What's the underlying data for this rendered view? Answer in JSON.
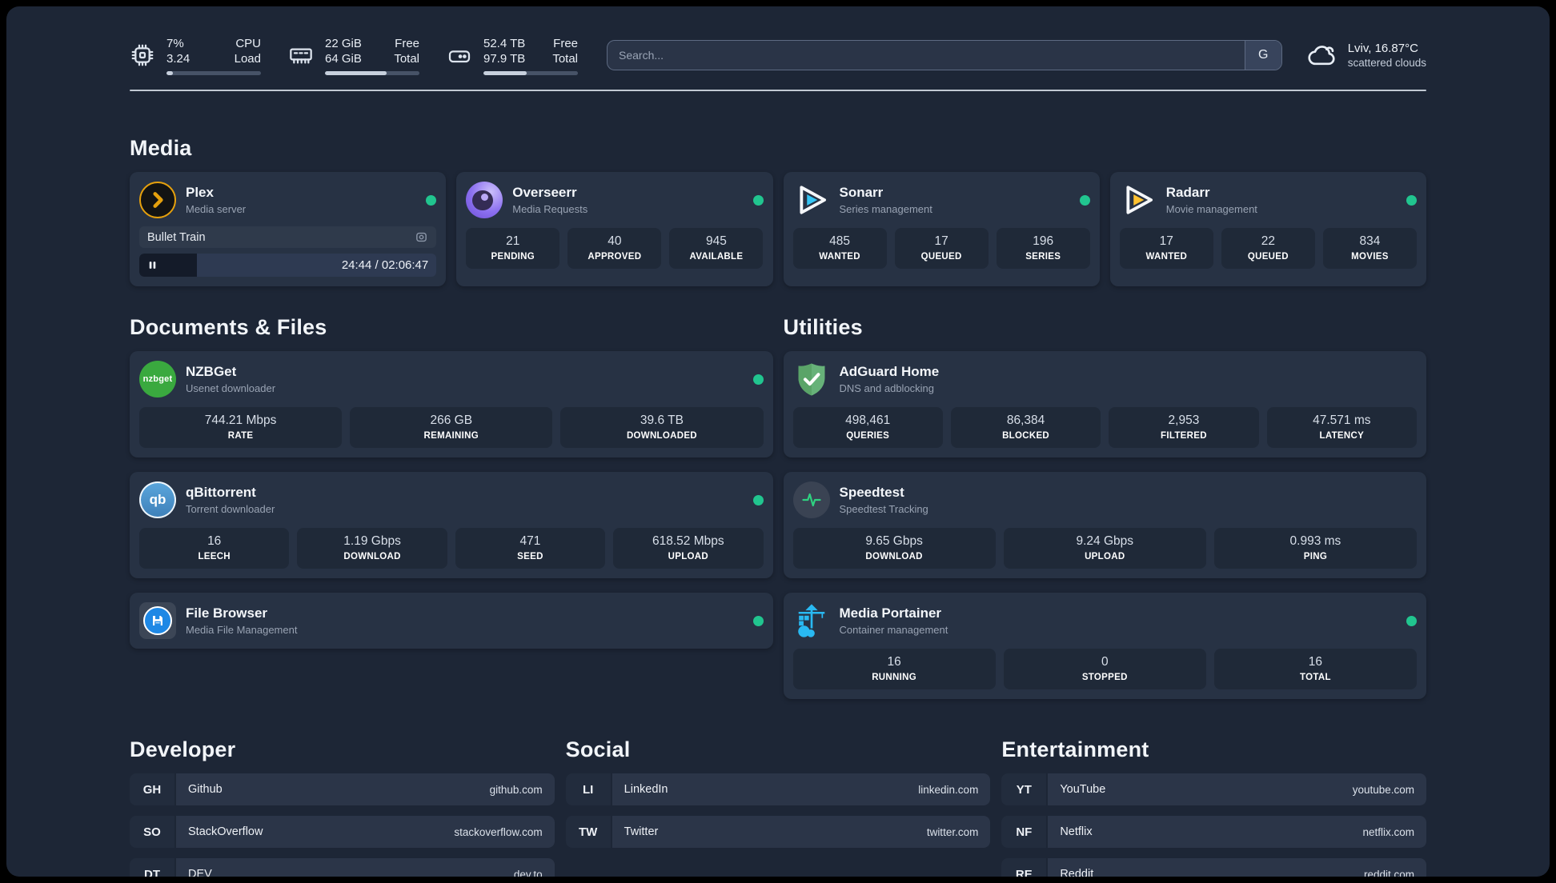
{
  "header": {
    "stats": [
      {
        "icon": "cpu-icon",
        "values": [
          "7%",
          "3.24"
        ],
        "labels": [
          "CPU",
          "Load"
        ],
        "progress_pct": 7
      },
      {
        "icon": "ram-icon",
        "values": [
          "22 GiB",
          "64 GiB"
        ],
        "labels": [
          "Free",
          "Total"
        ],
        "progress_pct": 65
      },
      {
        "icon": "disk-icon",
        "values": [
          "52.4 TB",
          "97.9 TB"
        ],
        "labels": [
          "Free",
          "Total"
        ],
        "progress_pct": 46
      }
    ],
    "search": {
      "placeholder": "Search...",
      "button_label": "G"
    },
    "weather": {
      "icon": "cloud-icon",
      "location": "Lviv, 16.87°C",
      "condition": "scattered clouds"
    }
  },
  "sections": {
    "media": {
      "title": "Media",
      "cards": [
        {
          "name": "Plex",
          "desc": "Media server",
          "status_dot": true,
          "now_playing": {
            "title": "Bullet Train",
            "time": "24:44 / 02:06:47",
            "progress_pct": 19.5
          }
        },
        {
          "name": "Overseerr",
          "desc": "Media Requests",
          "status_dot": true,
          "stats": [
            {
              "value": "21",
              "label": "PENDING"
            },
            {
              "value": "40",
              "label": "APPROVED"
            },
            {
              "value": "945",
              "label": "AVAILABLE"
            }
          ]
        },
        {
          "name": "Sonarr",
          "desc": "Series management",
          "status_dot": true,
          "stats": [
            {
              "value": "485",
              "label": "WANTED"
            },
            {
              "value": "17",
              "label": "QUEUED"
            },
            {
              "value": "196",
              "label": "SERIES"
            }
          ]
        },
        {
          "name": "Radarr",
          "desc": "Movie management",
          "status_dot": true,
          "stats": [
            {
              "value": "17",
              "label": "WANTED"
            },
            {
              "value": "22",
              "label": "QUEUED"
            },
            {
              "value": "834",
              "label": "MOVIES"
            }
          ]
        }
      ]
    },
    "documents": {
      "title": "Documents & Files",
      "cards": [
        {
          "name": "NZBGet",
          "desc": "Usenet downloader",
          "status_dot": true,
          "stats": [
            {
              "value": "744.21 Mbps",
              "label": "RATE"
            },
            {
              "value": "266 GB",
              "label": "REMAINING"
            },
            {
              "value": "39.6 TB",
              "label": "DOWNLOADED"
            }
          ]
        },
        {
          "name": "qBittorrent",
          "desc": "Torrent downloader",
          "status_dot": true,
          "stats": [
            {
              "value": "16",
              "label": "LEECH"
            },
            {
              "value": "1.19 Gbps",
              "label": "DOWNLOAD"
            },
            {
              "value": "471",
              "label": "SEED"
            },
            {
              "value": "618.52 Mbps",
              "label": "UPLOAD"
            }
          ]
        },
        {
          "name": "File Browser",
          "desc": "Media File Management",
          "status_dot": true,
          "stats": []
        }
      ]
    },
    "utilities": {
      "title": "Utilities",
      "cards": [
        {
          "name": "AdGuard Home",
          "desc": "DNS and adblocking",
          "status_dot": false,
          "stats": [
            {
              "value": "498,461",
              "label": "QUERIES"
            },
            {
              "value": "86,384",
              "label": "BLOCKED"
            },
            {
              "value": "2,953",
              "label": "FILTERED"
            },
            {
              "value": "47.571 ms",
              "label": "LATENCY"
            }
          ]
        },
        {
          "name": "Speedtest",
          "desc": "Speedtest Tracking",
          "status_dot": false,
          "stats": [
            {
              "value": "9.65 Gbps",
              "label": "DOWNLOAD"
            },
            {
              "value": "9.24 Gbps",
              "label": "UPLOAD"
            },
            {
              "value": "0.993 ms",
              "label": "PING"
            }
          ]
        },
        {
          "name": "Media Portainer",
          "desc": "Container management",
          "status_dot": true,
          "stats": [
            {
              "value": "16",
              "label": "RUNNING"
            },
            {
              "value": "0",
              "label": "STOPPED"
            },
            {
              "value": "16",
              "label": "TOTAL"
            }
          ]
        }
      ]
    }
  },
  "bookmarks": [
    {
      "title": "Developer",
      "links": [
        {
          "abbr": "GH",
          "name": "Github",
          "url": "github.com"
        },
        {
          "abbr": "SO",
          "name": "StackOverflow",
          "url": "stackoverflow.com"
        },
        {
          "abbr": "DT",
          "name": "DEV",
          "url": "dev.to"
        }
      ]
    },
    {
      "title": "Social",
      "links": [
        {
          "abbr": "LI",
          "name": "LinkedIn",
          "url": "linkedin.com"
        },
        {
          "abbr": "TW",
          "name": "Twitter",
          "url": "twitter.com"
        }
      ]
    },
    {
      "title": "Entertainment",
      "links": [
        {
          "abbr": "YT",
          "name": "YouTube",
          "url": "youtube.com"
        },
        {
          "abbr": "NF",
          "name": "Netflix",
          "url": "netflix.com"
        },
        {
          "abbr": "RE",
          "name": "Reddit",
          "url": "reddit.com"
        }
      ]
    }
  ],
  "icons": {
    "nzbget_logo_text": "nzbget",
    "qbittorrent_logo_text": "qb"
  },
  "colors": {
    "background": "#1d2636",
    "card": "#273244",
    "status_online": "#21c58f",
    "plex_accent": "#e5a00d",
    "sonarr_accent": "#35c5f4",
    "radarr_accent": "#ffc230",
    "adguard_accent": "#67b279",
    "portainer_accent": "#29b9f2",
    "speedtest_accent": "#2fd180"
  }
}
